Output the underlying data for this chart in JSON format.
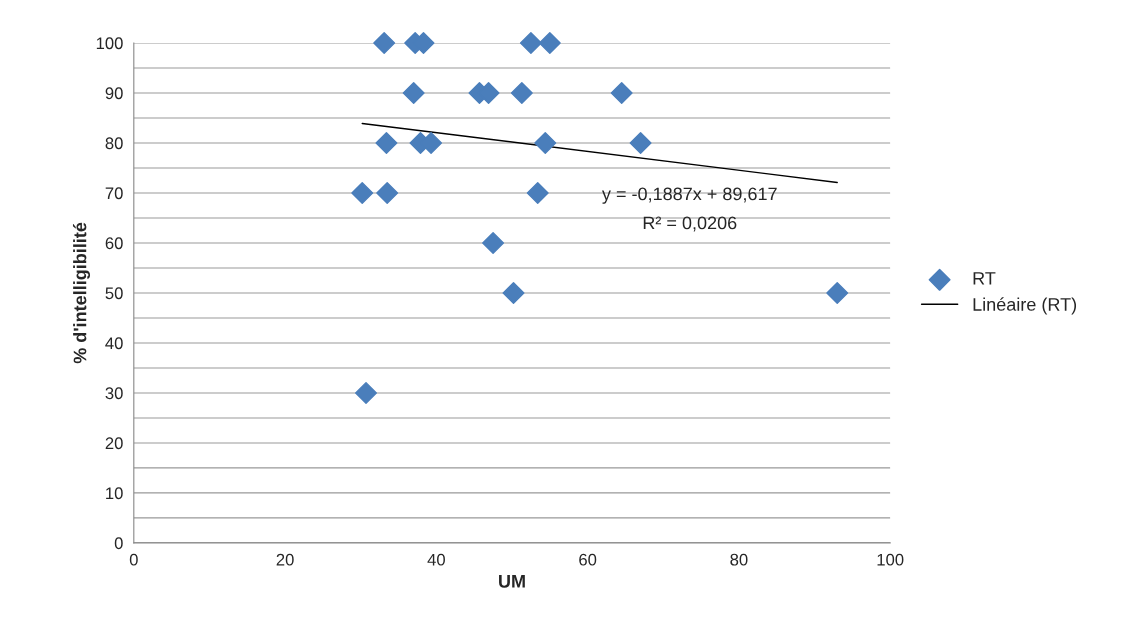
{
  "chart_data": {
    "type": "scatter",
    "xlabel": "UM",
    "ylabel": "% d'intelligibilité",
    "x": [
      33.1,
      37.2,
      38.3,
      52.5,
      55.0,
      37.0,
      45.7,
      46.9,
      51.3,
      64.5,
      33.4,
      37.9,
      39.3,
      54.4,
      67.0,
      30.2,
      33.5,
      53.4,
      47.5,
      50.2,
      93.0,
      30.7
    ],
    "series": [
      {
        "name": "RT",
        "color": "#4a7ebb",
        "marker": "diamond",
        "values": [
          100,
          100,
          100,
          100,
          100,
          90,
          90,
          90,
          90,
          90,
          80,
          80,
          80,
          80,
          80,
          70,
          70,
          70,
          60,
          50,
          50,
          30
        ]
      },
      {
        "name": "Linéaire (RT)",
        "type": "line",
        "color": "#000000",
        "marker": "none",
        "line_style": "solid",
        "x": [
          30.2,
          93.0
        ],
        "values": [
          83.9,
          72.1
        ]
      }
    ],
    "annotations": [
      "y = -0,1887x + 89,617",
      "R² = 0,0206"
    ],
    "xlim": [
      0,
      100
    ],
    "xticks": [
      0,
      20,
      40,
      60,
      80,
      100
    ],
    "ylim": [
      0,
      100
    ],
    "yticks": [
      0,
      {
        "value": 5,
        "label": null
      },
      10,
      {
        "value": 15,
        "label": null
      },
      20,
      {
        "value": 25,
        "label": null
      },
      30,
      {
        "value": 35,
        "label": null
      },
      40,
      {
        "value": 45,
        "label": null
      },
      50,
      {
        "value": 55,
        "label": null
      },
      60,
      {
        "value": 65,
        "label": null
      },
      70,
      {
        "value": 75,
        "label": null
      },
      80,
      {
        "value": 85,
        "label": null
      },
      90,
      {
        "value": 95,
        "label": null
      },
      100
    ],
    "grid": "y",
    "legend": "right"
  }
}
